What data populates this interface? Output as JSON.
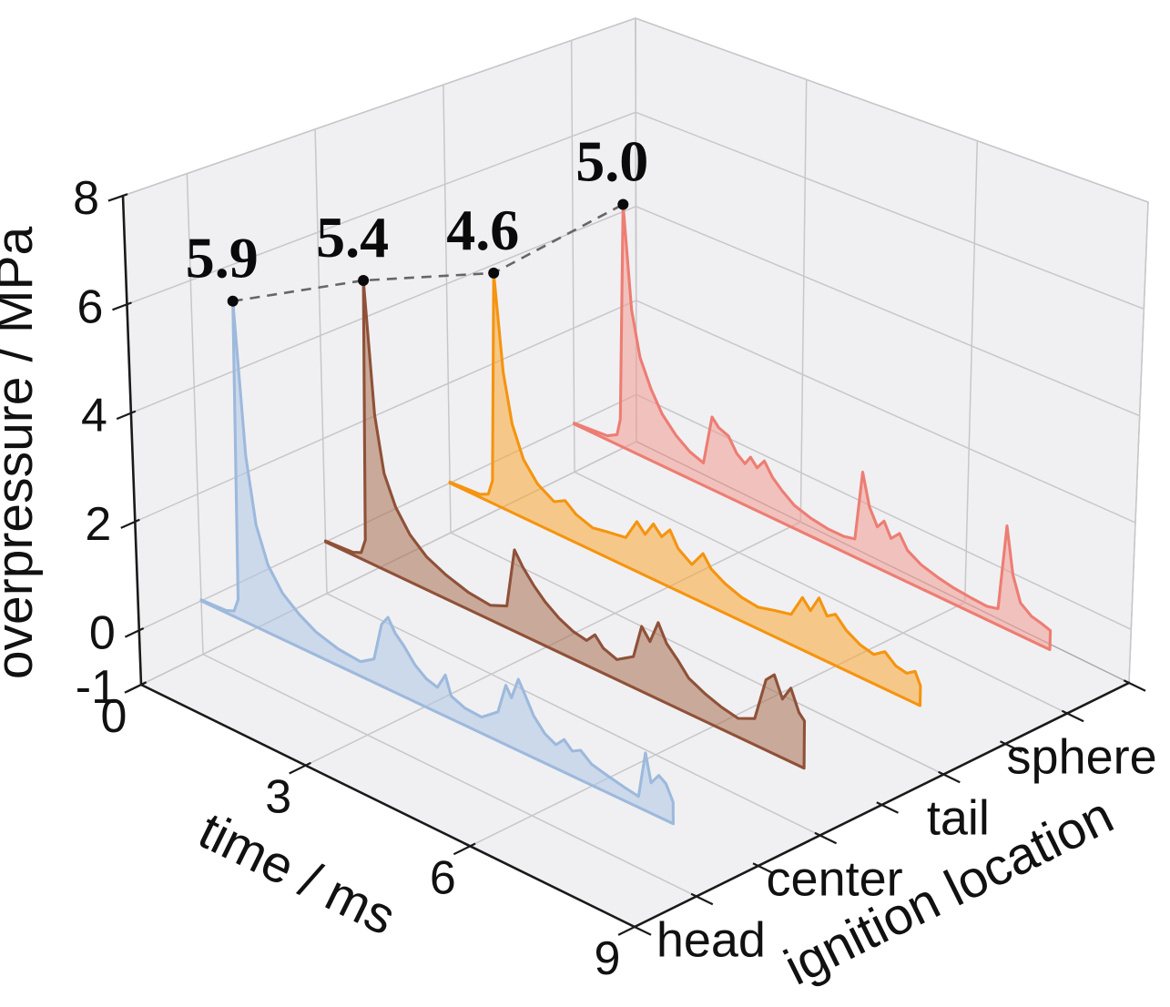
{
  "chart_data": {
    "type": "area",
    "variant": "3d-waterfall",
    "title": "",
    "xlabel": "time / ms",
    "ylabel": "ignition location",
    "zlabel": "overpressure / MPa",
    "x_range": [
      0,
      9
    ],
    "x_ticks": [
      "0",
      "3",
      "6",
      "9"
    ],
    "z_range": [
      -1,
      8
    ],
    "z_ticks": [
      "-1",
      "0",
      "2",
      "4",
      "6",
      "8"
    ],
    "z_grid_values": [
      0,
      2,
      4,
      6,
      8
    ],
    "y_categories": [
      "head",
      "center",
      "tail",
      "sphere"
    ],
    "y_minor_tick_count": 9,
    "grid": true,
    "legend_position": "none",
    "annotations": {
      "connector_style": "dashed",
      "peaks": [
        {
          "series": "head",
          "label": "5.9",
          "t": 0.75,
          "value": 5.9
        },
        {
          "series": "center",
          "label": "5.4",
          "t": 0.8,
          "value": 5.4
        },
        {
          "series": "tail",
          "label": "4.6",
          "t": 0.85,
          "value": 4.6
        },
        {
          "series": "sphere",
          "label": "5.0",
          "t": 0.9,
          "value": 5.0
        }
      ]
    },
    "series": [
      {
        "name": "head",
        "peak_overpressure_mpa": 5.9,
        "line_color": "#9db9dc",
        "fill_color": "#aec7e6",
        "points": [
          [
            0,
            0.02
          ],
          [
            0.45,
            0.04
          ],
          [
            0.6,
            0.1
          ],
          [
            0.68,
            0.35
          ],
          [
            0.75,
            5.9
          ],
          [
            0.9,
            3.1
          ],
          [
            1.05,
            1.9
          ],
          [
            1.25,
            1.25
          ],
          [
            1.5,
            0.85
          ],
          [
            1.8,
            0.6
          ],
          [
            2.1,
            0.42
          ],
          [
            2.5,
            0.3
          ],
          [
            2.9,
            0.26
          ],
          [
            3.15,
            0.42
          ],
          [
            3.3,
            1.1
          ],
          [
            3.42,
            1.28
          ],
          [
            3.55,
            1.05
          ],
          [
            3.7,
            0.9
          ],
          [
            3.9,
            0.65
          ],
          [
            4.1,
            0.5
          ],
          [
            4.3,
            0.44
          ],
          [
            4.45,
            0.72
          ],
          [
            4.55,
            0.4
          ],
          [
            4.8,
            0.3
          ],
          [
            5.1,
            0.28
          ],
          [
            5.4,
            0.5
          ],
          [
            5.55,
            1.02
          ],
          [
            5.65,
            0.85
          ],
          [
            5.78,
            1.22
          ],
          [
            5.9,
            1.0
          ],
          [
            6.05,
            0.72
          ],
          [
            6.25,
            0.5
          ],
          [
            6.45,
            0.4
          ],
          [
            6.6,
            0.55
          ],
          [
            6.75,
            0.42
          ],
          [
            6.9,
            0.5
          ],
          [
            7.1,
            0.35
          ],
          [
            7.4,
            0.28
          ],
          [
            7.7,
            0.22
          ],
          [
            7.95,
            0.18
          ],
          [
            8.08,
            0.95
          ],
          [
            8.18,
            0.5
          ],
          [
            8.32,
            0.68
          ],
          [
            8.45,
            0.6
          ],
          [
            8.58,
            0.35
          ]
        ]
      },
      {
        "name": "center",
        "peak_overpressure_mpa": 5.4,
        "line_color": "#8f5138",
        "fill_color": "#a96f52",
        "points": [
          [
            0,
            0.02
          ],
          [
            0.5,
            0.05
          ],
          [
            0.65,
            0.12
          ],
          [
            0.73,
            0.4
          ],
          [
            0.8,
            5.4
          ],
          [
            0.95,
            2.9
          ],
          [
            1.1,
            1.85
          ],
          [
            1.3,
            1.3
          ],
          [
            1.55,
            0.9
          ],
          [
            1.85,
            0.62
          ],
          [
            2.2,
            0.45
          ],
          [
            2.6,
            0.32
          ],
          [
            3.0,
            0.27
          ],
          [
            3.3,
            0.4
          ],
          [
            3.45,
            1.5
          ],
          [
            3.6,
            1.25
          ],
          [
            3.8,
            1.0
          ],
          [
            4.0,
            0.8
          ],
          [
            4.25,
            0.62
          ],
          [
            4.5,
            0.5
          ],
          [
            4.75,
            0.45
          ],
          [
            4.9,
            0.62
          ],
          [
            5.05,
            0.45
          ],
          [
            5.3,
            0.36
          ],
          [
            5.6,
            0.55
          ],
          [
            5.75,
            1.15
          ],
          [
            5.9,
            0.95
          ],
          [
            6.05,
            1.35
          ],
          [
            6.2,
            1.05
          ],
          [
            6.4,
            0.85
          ],
          [
            6.6,
            0.62
          ],
          [
            6.9,
            0.48
          ],
          [
            7.2,
            0.38
          ],
          [
            7.5,
            0.32
          ],
          [
            7.8,
            0.45
          ],
          [
            8.0,
            1.2
          ],
          [
            8.15,
            1.35
          ],
          [
            8.3,
            1.0
          ],
          [
            8.45,
            1.25
          ],
          [
            8.6,
            0.9
          ],
          [
            8.7,
            0.8
          ]
        ]
      },
      {
        "name": "tail",
        "peak_overpressure_mpa": 4.6,
        "line_color": "#f5940f",
        "fill_color": "#f9a733",
        "points": [
          [
            0,
            0.02
          ],
          [
            0.55,
            0.06
          ],
          [
            0.7,
            0.14
          ],
          [
            0.78,
            0.45
          ],
          [
            0.85,
            4.6
          ],
          [
            1.0,
            2.7
          ],
          [
            1.15,
            1.75
          ],
          [
            1.35,
            1.15
          ],
          [
            1.6,
            0.8
          ],
          [
            1.9,
            0.6
          ],
          [
            2.1,
            0.72
          ],
          [
            2.3,
            0.55
          ],
          [
            2.6,
            0.44
          ],
          [
            2.9,
            0.5
          ],
          [
            3.2,
            0.55
          ],
          [
            3.4,
            0.95
          ],
          [
            3.55,
            0.78
          ],
          [
            3.7,
            1.05
          ],
          [
            3.85,
            0.88
          ],
          [
            4.0,
            1.08
          ],
          [
            4.15,
            0.8
          ],
          [
            4.4,
            0.62
          ],
          [
            4.6,
            0.92
          ],
          [
            4.75,
            0.7
          ],
          [
            5.0,
            0.55
          ],
          [
            5.3,
            0.44
          ],
          [
            5.6,
            0.4
          ],
          [
            5.9,
            0.48
          ],
          [
            6.2,
            0.55
          ],
          [
            6.4,
            0.95
          ],
          [
            6.55,
            0.78
          ],
          [
            6.7,
            1.08
          ],
          [
            6.85,
            0.82
          ],
          [
            7.0,
            0.92
          ],
          [
            7.2,
            0.72
          ],
          [
            7.45,
            0.58
          ],
          [
            7.7,
            0.52
          ],
          [
            7.9,
            0.66
          ],
          [
            8.1,
            0.5
          ],
          [
            8.3,
            0.46
          ],
          [
            8.45,
            0.56
          ],
          [
            8.55,
            0.35
          ]
        ]
      },
      {
        "name": "sphere",
        "peak_overpressure_mpa": 5.0,
        "line_color": "#ed7d73",
        "fill_color": "#f29b92",
        "points": [
          [
            0,
            0.02
          ],
          [
            0.6,
            0.08
          ],
          [
            0.78,
            0.2
          ],
          [
            0.84,
            0.55
          ],
          [
            0.9,
            5.0
          ],
          [
            1.05,
            2.9
          ],
          [
            1.2,
            2.0
          ],
          [
            1.4,
            1.45
          ],
          [
            1.6,
            1.05
          ],
          [
            1.85,
            0.75
          ],
          [
            2.1,
            0.55
          ],
          [
            2.35,
            0.45
          ],
          [
            2.5,
            1.45
          ],
          [
            2.62,
            1.3
          ],
          [
            2.8,
            1.22
          ],
          [
            2.95,
            0.95
          ],
          [
            3.1,
            0.82
          ],
          [
            3.2,
            1.0
          ],
          [
            3.32,
            0.85
          ],
          [
            3.45,
            1.05
          ],
          [
            3.6,
            0.8
          ],
          [
            3.78,
            0.62
          ],
          [
            4.0,
            0.45
          ],
          [
            4.3,
            0.35
          ],
          [
            4.6,
            0.3
          ],
          [
            4.9,
            0.3
          ],
          [
            5.1,
            0.35
          ],
          [
            5.22,
            1.7
          ],
          [
            5.35,
            1.1
          ],
          [
            5.5,
            0.78
          ],
          [
            5.62,
            0.95
          ],
          [
            5.75,
            0.68
          ],
          [
            5.9,
            0.85
          ],
          [
            6.05,
            0.6
          ],
          [
            6.3,
            0.45
          ],
          [
            6.6,
            0.36
          ],
          [
            6.9,
            0.3
          ],
          [
            7.2,
            0.27
          ],
          [
            7.5,
            0.25
          ],
          [
            7.7,
            0.3
          ],
          [
            7.82,
            1.9
          ],
          [
            7.95,
            1.05
          ],
          [
            8.1,
            0.6
          ],
          [
            8.3,
            0.45
          ],
          [
            8.5,
            0.4
          ],
          [
            8.65,
            0.35
          ]
        ]
      }
    ],
    "colors": {
      "background": "#ffffff",
      "pane_fill": "#f0f0f2",
      "pane_edge": "#a9a9ad",
      "grid_line": "#c7c7ca",
      "axis_spine": "#1a1a1a",
      "tick_text": "#111111",
      "peak_label_text": "#0a0a0a",
      "peak_connector": "#666666",
      "peak_marker": "#0a0a0a"
    }
  }
}
